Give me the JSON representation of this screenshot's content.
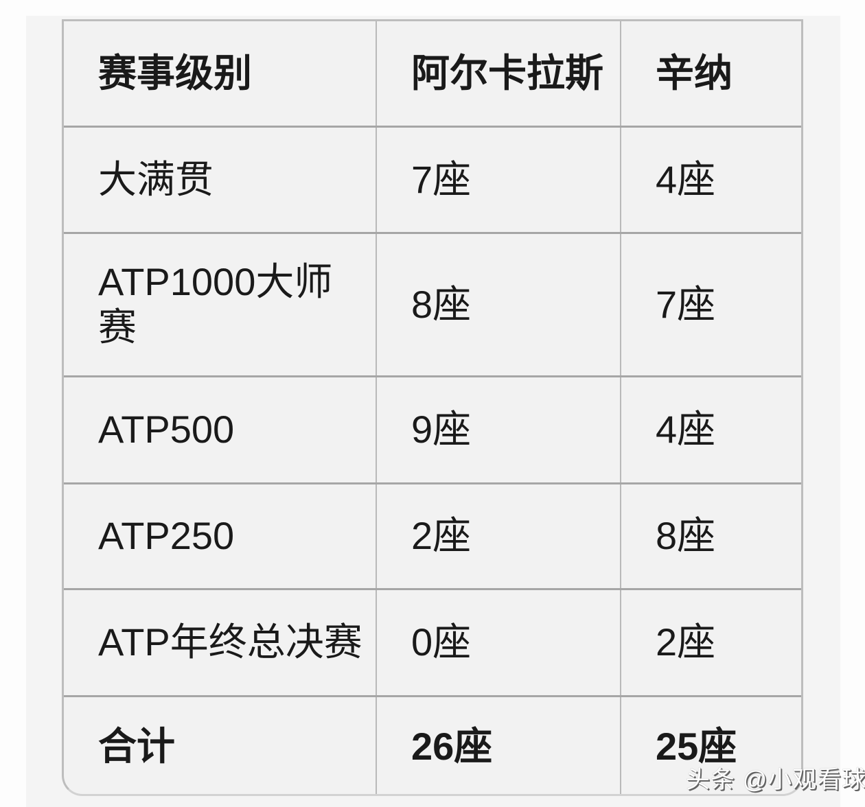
{
  "chart_data": {
    "type": "table",
    "title": "",
    "columns": [
      "赛事级别",
      "阿尔卡拉斯",
      "辛纳"
    ],
    "rows": [
      [
        "大满贯",
        "7座",
        "4座"
      ],
      [
        "ATP1000大师赛",
        "8座",
        "7座"
      ],
      [
        "ATP500",
        "9座",
        "4座"
      ],
      [
        "ATP250",
        "2座",
        "8座"
      ],
      [
        "ATP年终总决赛",
        "0座",
        "2座"
      ],
      [
        "合计",
        "26座",
        "25座"
      ]
    ],
    "layout_hints": {
      "header_bold": true,
      "total_row_bold": true,
      "grid": true,
      "rounded_bottom_corners": true
    }
  },
  "watermark": {
    "text": "头条 @小观看球"
  },
  "colors": {
    "page_bg": "#fdfdfd",
    "panel_bg": "#f4f4f4",
    "cell_bg": "#f2f2f2",
    "border_horizontal": "#a6a6a6",
    "border_vertical": "#b9b9b9",
    "outer_border": "#bdbdbd",
    "text": "#1a1a1a",
    "watermark_text": "#ffffff",
    "watermark_shadow": "#636363"
  }
}
